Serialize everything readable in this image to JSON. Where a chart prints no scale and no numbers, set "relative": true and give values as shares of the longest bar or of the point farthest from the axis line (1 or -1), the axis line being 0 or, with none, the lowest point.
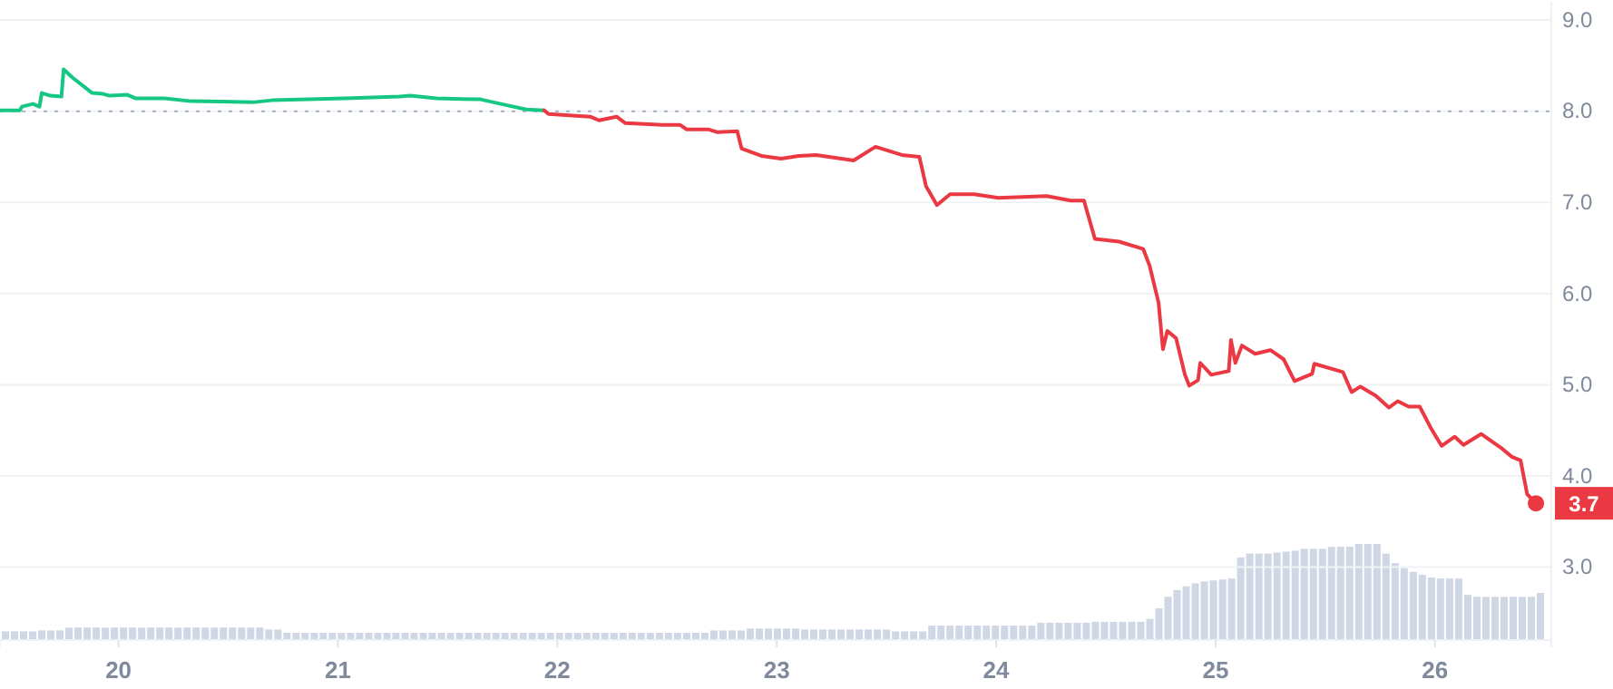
{
  "chart_data": [
    {
      "type": "line",
      "xlim": [
        19.46,
        26.53
      ],
      "ylim": [
        2.2,
        9.2
      ],
      "xticks": [
        20,
        21,
        22,
        23,
        24,
        25,
        26
      ],
      "yticks": [
        {
          "value": 3,
          "label": "3.0"
        },
        {
          "value": 4,
          "label": "4.0"
        },
        {
          "value": 5,
          "label": "5.0"
        },
        {
          "value": 6,
          "label": "6.0"
        },
        {
          "value": 7,
          "label": "7.0"
        },
        {
          "value": 8,
          "label": "8.0"
        },
        {
          "value": 9,
          "label": "9.0"
        }
      ],
      "grid": "y",
      "ref_lines": [
        {
          "axis": "y",
          "value": 8,
          "label": null,
          "color": "#a6b0c3",
          "line_style": "dotted"
        }
      ],
      "annotations": [
        {
          "text": "3.7",
          "x": 26.46,
          "y": 3.7
        }
      ],
      "series": [
        {
          "color": "#16c784",
          "x": [
            19.46,
            19.55,
            19.56,
            19.61,
            19.64,
            19.65,
            19.69,
            19.74,
            19.75,
            19.79,
            19.88,
            19.93,
            19.96,
            20.04,
            20.08,
            20.21,
            20.33,
            20.62,
            20.7,
            21.03,
            21.28,
            21.33,
            21.45,
            21.65,
            21.78,
            21.86,
            21.94
          ],
          "values": [
            8.01,
            8.01,
            8.05,
            8.08,
            8.05,
            8.2,
            8.17,
            8.16,
            8.46,
            8.37,
            8.2,
            8.19,
            8.17,
            8.18,
            8.14,
            8.14,
            8.11,
            8.1,
            8.12,
            8.14,
            8.16,
            8.17,
            8.14,
            8.13,
            8.06,
            8.02,
            8.01
          ]
        },
        {
          "color": "#ea3943",
          "x": [
            21.94,
            21.96,
            22.15,
            22.19,
            22.27,
            22.31,
            22.48,
            22.56,
            22.59,
            22.69,
            22.73,
            22.82,
            22.84,
            22.93,
            23.02,
            23.1,
            23.18,
            23.35,
            23.45,
            23.57,
            23.65,
            23.68,
            23.73,
            23.79,
            23.9,
            24.01,
            24.23,
            24.34,
            24.4,
            24.45,
            24.56,
            24.67,
            24.7,
            24.74,
            24.76,
            24.78,
            24.82,
            24.86,
            24.88,
            24.92,
            24.93,
            24.98,
            25.06,
            25.07,
            25.09,
            25.12,
            25.18,
            25.25,
            25.31,
            25.36,
            25.44,
            25.45,
            25.58,
            25.62,
            25.66,
            25.73,
            25.79,
            25.83,
            25.88,
            25.93,
            25.98,
            26.03,
            26.09,
            26.13,
            26.21,
            26.3,
            26.35,
            26.39,
            26.42,
            26.46
          ],
          "values": [
            8.01,
            7.97,
            7.94,
            7.9,
            7.94,
            7.87,
            7.85,
            7.85,
            7.8,
            7.8,
            7.77,
            7.78,
            7.59,
            7.51,
            7.48,
            7.51,
            7.52,
            7.46,
            7.61,
            7.52,
            7.5,
            7.18,
            6.97,
            7.09,
            7.09,
            7.05,
            7.07,
            7.02,
            7.02,
            6.6,
            6.57,
            6.49,
            6.3,
            5.9,
            5.39,
            5.59,
            5.51,
            5.11,
            4.99,
            5.05,
            5.24,
            5.11,
            5.15,
            5.49,
            5.24,
            5.43,
            5.34,
            5.38,
            5.28,
            5.04,
            5.12,
            5.23,
            5.14,
            4.92,
            4.98,
            4.88,
            4.75,
            4.82,
            4.76,
            4.76,
            4.53,
            4.33,
            4.43,
            4.34,
            4.46,
            4.31,
            4.21,
            4.17,
            3.8,
            3.7
          ]
        }
      ]
    },
    {
      "type": "bar",
      "relative": true,
      "color": "#cfd6e4",
      "categories": [
        null,
        null,
        null,
        null,
        null,
        null,
        null,
        null,
        null,
        null,
        null,
        null,
        null,
        null,
        null,
        null,
        null,
        null,
        null,
        null,
        null,
        null,
        null,
        null,
        null,
        null,
        null,
        null,
        null,
        null,
        null,
        null,
        null,
        null,
        null,
        null,
        null,
        null,
        null,
        null,
        null,
        null,
        null,
        null,
        null,
        null,
        null,
        null,
        null,
        null,
        null,
        null,
        null,
        null,
        null,
        null,
        null,
        null,
        null,
        null,
        null,
        null,
        null,
        null,
        null,
        null,
        null,
        null,
        null,
        null,
        null,
        null,
        null,
        null,
        null,
        null,
        null,
        null,
        null,
        null,
        null,
        null,
        null,
        null,
        null,
        null,
        null,
        null,
        null,
        null,
        null,
        null,
        null,
        null,
        null,
        null,
        null,
        null,
        null,
        null,
        null,
        null,
        null,
        null,
        null,
        null,
        null,
        null,
        null,
        null,
        null,
        null,
        null,
        null,
        null,
        null,
        null,
        null,
        null,
        null,
        null,
        null,
        null,
        null,
        null,
        null,
        null,
        null,
        null,
        null,
        null,
        null,
        null,
        null,
        null,
        null,
        null,
        null,
        null,
        null,
        null,
        null,
        null,
        null,
        null,
        null,
        null,
        null,
        null,
        null,
        null,
        null,
        null,
        null,
        null,
        null,
        null,
        null,
        null,
        null,
        null,
        null,
        null,
        null,
        null,
        null,
        null,
        null,
        null,
        null
      ],
      "values": [
        0.09,
        0.09,
        0.09,
        0.09,
        0.1,
        0.1,
        0.1,
        0.13,
        0.13,
        0.13,
        0.13,
        0.13,
        0.13,
        0.13,
        0.13,
        0.13,
        0.13,
        0.13,
        0.13,
        0.13,
        0.13,
        0.13,
        0.13,
        0.13,
        0.13,
        0.13,
        0.13,
        0.13,
        0.13,
        0.11,
        0.11,
        0.075,
        0.075,
        0.075,
        0.075,
        0.075,
        0.075,
        0.075,
        0.075,
        0.075,
        0.075,
        0.075,
        0.075,
        0.075,
        0.075,
        0.075,
        0.075,
        0.075,
        0.075,
        0.075,
        0.075,
        0.075,
        0.075,
        0.075,
        0.075,
        0.075,
        0.075,
        0.075,
        0.075,
        0.075,
        0.075,
        0.075,
        0.075,
        0.075,
        0.075,
        0.075,
        0.075,
        0.075,
        0.075,
        0.075,
        0.075,
        0.075,
        0.075,
        0.075,
        0.075,
        0.075,
        0.075,
        0.075,
        0.1,
        0.1,
        0.1,
        0.1,
        0.12,
        0.12,
        0.12,
        0.12,
        0.12,
        0.12,
        0.11,
        0.11,
        0.11,
        0.11,
        0.11,
        0.11,
        0.11,
        0.11,
        0.11,
        0.11,
        0.09,
        0.09,
        0.09,
        0.09,
        0.15,
        0.15,
        0.15,
        0.15,
        0.15,
        0.15,
        0.15,
        0.15,
        0.15,
        0.15,
        0.15,
        0.15,
        0.18,
        0.18,
        0.18,
        0.18,
        0.18,
        0.18,
        0.19,
        0.19,
        0.19,
        0.19,
        0.19,
        0.19,
        0.22,
        0.33,
        0.45,
        0.52,
        0.56,
        0.59,
        0.61,
        0.62,
        0.63,
        0.64,
        0.86,
        0.9,
        0.9,
        0.9,
        0.91,
        0.92,
        0.93,
        0.95,
        0.95,
        0.95,
        0.97,
        0.97,
        0.97,
        1,
        1,
        1,
        0.9,
        0.8,
        0.75,
        0.71,
        0.68,
        0.65,
        0.64,
        0.64,
        0.64,
        0.47,
        0.45,
        0.45,
        0.45,
        0.45,
        0.45,
        0.45,
        0.45,
        0.49
      ]
    }
  ]
}
